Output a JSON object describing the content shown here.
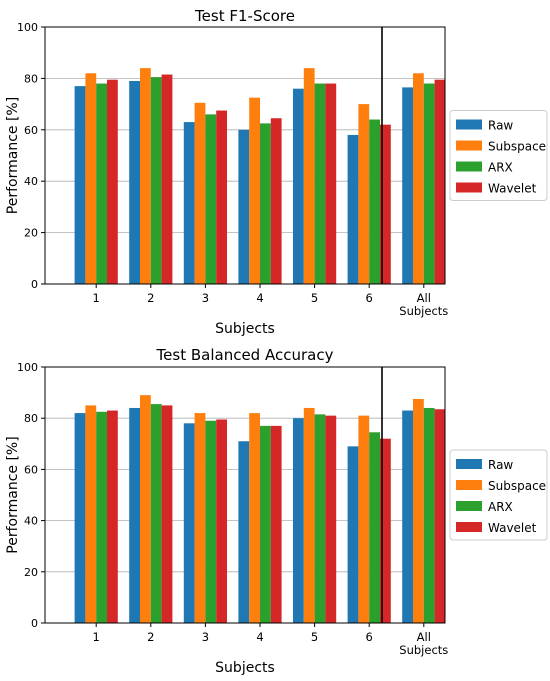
{
  "chart_data": [
    {
      "type": "bar",
      "title": "Test F1-Score",
      "xlabel": "Subjects",
      "ylabel": "Performance [%]",
      "ylim": [
        0,
        100
      ],
      "yticks": [
        0,
        20,
        40,
        60,
        80,
        100
      ],
      "grid": true,
      "legend_position": "right",
      "categories": [
        "1",
        "2",
        "3",
        "4",
        "5",
        "6",
        "All Subjects"
      ],
      "series": [
        {
          "name": "Raw",
          "color": "#1f77b4",
          "values": [
            77,
            79,
            63,
            60,
            76,
            58,
            76.5
          ]
        },
        {
          "name": "Subspace",
          "color": "#ff7f0e",
          "values": [
            82,
            84,
            70.5,
            72.5,
            84,
            70,
            82
          ]
        },
        {
          "name": "ARX",
          "color": "#2ca02c",
          "values": [
            78,
            80.5,
            66,
            62.5,
            78,
            64,
            78
          ]
        },
        {
          "name": "Wavelet",
          "color": "#d62728",
          "values": [
            79.5,
            81.5,
            67.5,
            64.5,
            78,
            62,
            79.5
          ]
        }
      ]
    },
    {
      "type": "bar",
      "title": "Test Balanced Accuracy",
      "xlabel": "Subjects",
      "ylabel": "Performance [%]",
      "ylim": [
        0,
        100
      ],
      "yticks": [
        0,
        20,
        40,
        60,
        80,
        100
      ],
      "grid": true,
      "legend_position": "right",
      "categories": [
        "1",
        "2",
        "3",
        "4",
        "5",
        "6",
        "All Subjects"
      ],
      "series": [
        {
          "name": "Raw",
          "color": "#1f77b4",
          "values": [
            82,
            84,
            78,
            71,
            80,
            69,
            83
          ]
        },
        {
          "name": "Subspace",
          "color": "#ff7f0e",
          "values": [
            85,
            89,
            82,
            82,
            84,
            81,
            87.5
          ]
        },
        {
          "name": "ARX",
          "color": "#2ca02c",
          "values": [
            82.5,
            85.5,
            79,
            77,
            81.5,
            74.5,
            84
          ]
        },
        {
          "name": "Wavelet",
          "color": "#d62728",
          "values": [
            83,
            85,
            79.5,
            77,
            81,
            72,
            83.5
          ]
        }
      ]
    }
  ]
}
